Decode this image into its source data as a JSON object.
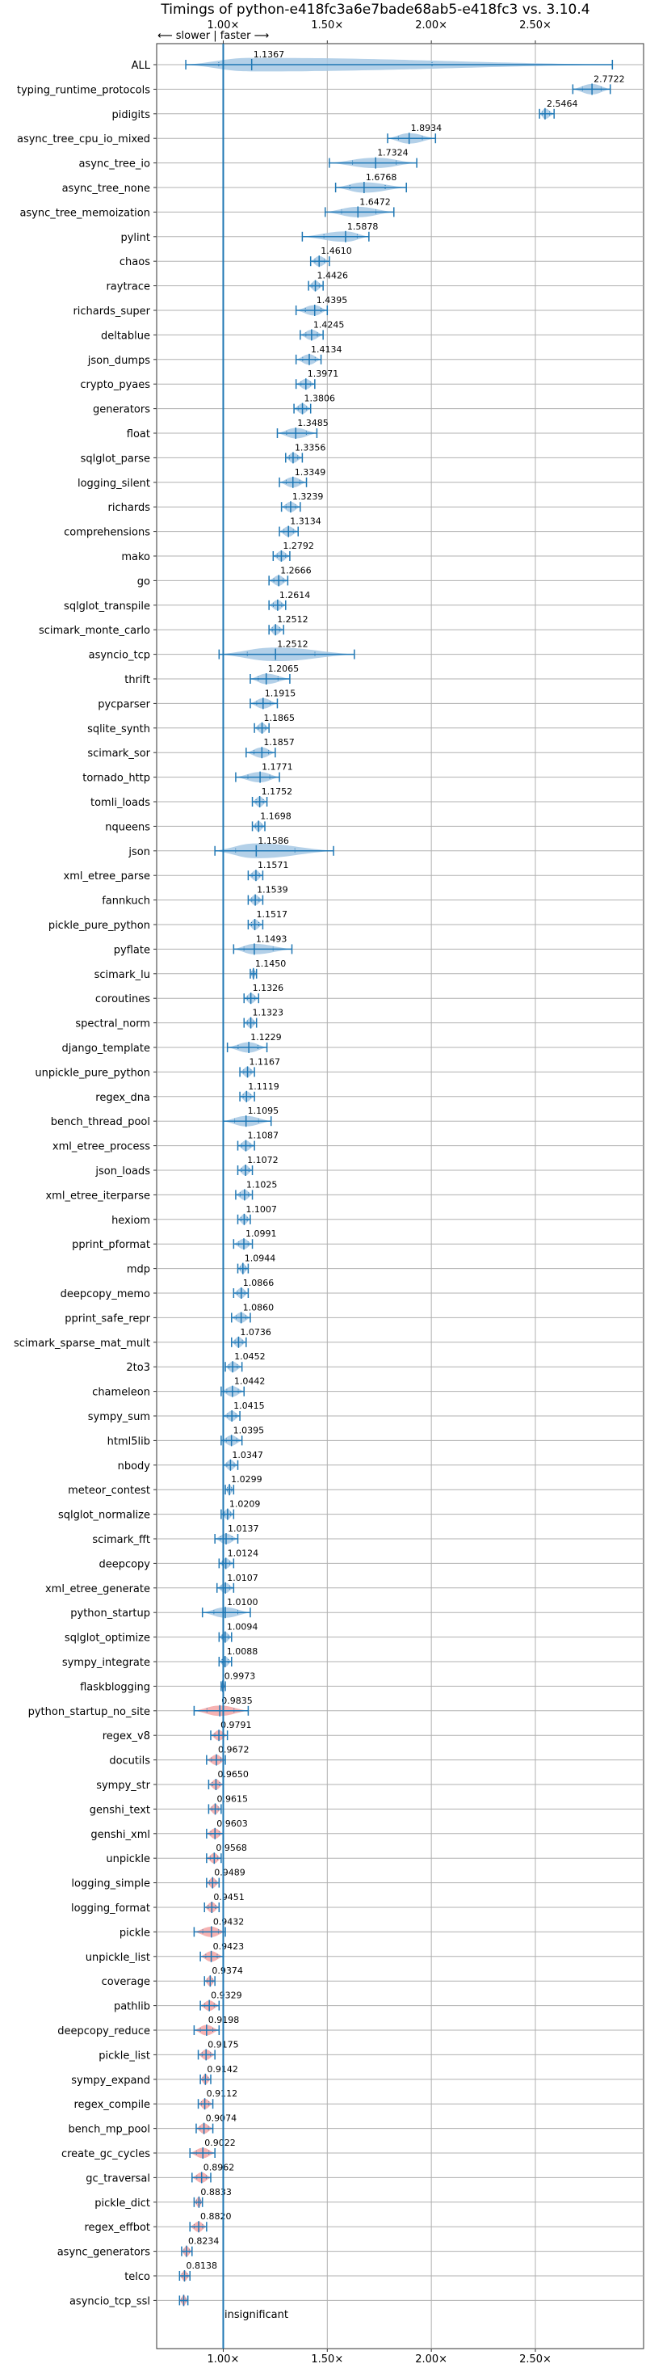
{
  "chart_data": {
    "type": "violin",
    "title": "Timings of python-e418fc3a6e7bade68ab5-e418fc3 vs. 3.10.4",
    "direction_label": "⟵ slower | faster ⟶",
    "footnote": "insignificant",
    "xlim": [
      0.68,
      3.02
    ],
    "x_ticks": [
      {
        "value": 1.0,
        "label": "1.00×"
      },
      {
        "value": 1.5,
        "label": "1.50×"
      },
      {
        "value": 2.0,
        "label": "2.00×"
      },
      {
        "value": 2.5,
        "label": "2.50×"
      }
    ],
    "grid": true,
    "colors": {
      "faster": "#a6c8e4",
      "slower": "#f4a5a5",
      "line": "#1f77b4",
      "axis": "#333333"
    },
    "benchmarks": [
      {
        "name": "ALL",
        "value": 1.1367,
        "min": 0.82,
        "max": 2.87,
        "width": 0.55
      },
      {
        "name": "typing_runtime_protocols",
        "value": 2.7722,
        "min": 2.68,
        "max": 2.86
      },
      {
        "name": "pidigits",
        "value": 2.5464,
        "min": 2.52,
        "max": 2.59
      },
      {
        "name": "async_tree_cpu_io_mixed",
        "value": 1.8934,
        "min": 1.79,
        "max": 2.02
      },
      {
        "name": "async_tree_io",
        "value": 1.7324,
        "min": 1.51,
        "max": 1.93
      },
      {
        "name": "async_tree_none",
        "value": 1.6768,
        "min": 1.54,
        "max": 1.88
      },
      {
        "name": "async_tree_memoization",
        "value": 1.6472,
        "min": 1.49,
        "max": 1.82
      },
      {
        "name": "pylint",
        "value": 1.5878,
        "min": 1.38,
        "max": 1.7
      },
      {
        "name": "chaos",
        "value": 1.461,
        "min": 1.42,
        "max": 1.51
      },
      {
        "name": "raytrace",
        "value": 1.4426,
        "min": 1.41,
        "max": 1.48
      },
      {
        "name": "richards_super",
        "value": 1.4395,
        "min": 1.35,
        "max": 1.5
      },
      {
        "name": "deltablue",
        "value": 1.4245,
        "min": 1.37,
        "max": 1.48
      },
      {
        "name": "json_dumps",
        "value": 1.4134,
        "min": 1.35,
        "max": 1.47
      },
      {
        "name": "crypto_pyaes",
        "value": 1.3971,
        "min": 1.35,
        "max": 1.44
      },
      {
        "name": "generators",
        "value": 1.3806,
        "min": 1.34,
        "max": 1.42
      },
      {
        "name": "float",
        "value": 1.3485,
        "min": 1.26,
        "max": 1.45
      },
      {
        "name": "sqlglot_parse",
        "value": 1.3356,
        "min": 1.3,
        "max": 1.38
      },
      {
        "name": "logging_silent",
        "value": 1.3349,
        "min": 1.27,
        "max": 1.4
      },
      {
        "name": "richards",
        "value": 1.3239,
        "min": 1.28,
        "max": 1.37
      },
      {
        "name": "comprehensions",
        "value": 1.3134,
        "min": 1.27,
        "max": 1.36
      },
      {
        "name": "mako",
        "value": 1.2792,
        "min": 1.24,
        "max": 1.32
      },
      {
        "name": "go",
        "value": 1.2666,
        "min": 1.22,
        "max": 1.31
      },
      {
        "name": "sqlglot_transpile",
        "value": 1.2614,
        "min": 1.22,
        "max": 1.3
      },
      {
        "name": "scimark_monte_carlo",
        "value": 1.2512,
        "min": 1.22,
        "max": 1.29
      },
      {
        "name": "asyncio_tcp",
        "value": 1.2512,
        "min": 0.98,
        "max": 1.63,
        "width": 0.55
      },
      {
        "name": "thrift",
        "value": 1.2065,
        "min": 1.13,
        "max": 1.32
      },
      {
        "name": "pycparser",
        "value": 1.1915,
        "min": 1.13,
        "max": 1.26
      },
      {
        "name": "sqlite_synth",
        "value": 1.1865,
        "min": 1.15,
        "max": 1.22
      },
      {
        "name": "scimark_sor",
        "value": 1.1857,
        "min": 1.11,
        "max": 1.25
      },
      {
        "name": "tornado_http",
        "value": 1.1771,
        "min": 1.06,
        "max": 1.27
      },
      {
        "name": "tomli_loads",
        "value": 1.1752,
        "min": 1.14,
        "max": 1.21
      },
      {
        "name": "nqueens",
        "value": 1.1698,
        "min": 1.14,
        "max": 1.2
      },
      {
        "name": "json",
        "value": 1.1586,
        "min": 0.96,
        "max": 1.53,
        "width": 0.6
      },
      {
        "name": "xml_etree_parse",
        "value": 1.1571,
        "min": 1.12,
        "max": 1.19
      },
      {
        "name": "fannkuch",
        "value": 1.1539,
        "min": 1.12,
        "max": 1.19
      },
      {
        "name": "pickle_pure_python",
        "value": 1.1517,
        "min": 1.12,
        "max": 1.19
      },
      {
        "name": "pyflate",
        "value": 1.1493,
        "min": 1.05,
        "max": 1.33
      },
      {
        "name": "scimark_lu",
        "value": 1.145,
        "min": 1.13,
        "max": 1.16
      },
      {
        "name": "coroutines",
        "value": 1.1326,
        "min": 1.1,
        "max": 1.17
      },
      {
        "name": "spectral_norm",
        "value": 1.1323,
        "min": 1.1,
        "max": 1.16
      },
      {
        "name": "django_template",
        "value": 1.1229,
        "min": 1.02,
        "max": 1.21
      },
      {
        "name": "unpickle_pure_python",
        "value": 1.1167,
        "min": 1.08,
        "max": 1.15
      },
      {
        "name": "regex_dna",
        "value": 1.1119,
        "min": 1.08,
        "max": 1.15
      },
      {
        "name": "bench_thread_pool",
        "value": 1.1095,
        "min": 1.0,
        "max": 1.23
      },
      {
        "name": "xml_etree_process",
        "value": 1.1087,
        "min": 1.07,
        "max": 1.15
      },
      {
        "name": "json_loads",
        "value": 1.1072,
        "min": 1.07,
        "max": 1.14
      },
      {
        "name": "xml_etree_iterparse",
        "value": 1.1025,
        "min": 1.06,
        "max": 1.14
      },
      {
        "name": "hexiom",
        "value": 1.1007,
        "min": 1.07,
        "max": 1.13
      },
      {
        "name": "pprint_pformat",
        "value": 1.0991,
        "min": 1.05,
        "max": 1.14
      },
      {
        "name": "mdp",
        "value": 1.0944,
        "min": 1.07,
        "max": 1.12
      },
      {
        "name": "deepcopy_memo",
        "value": 1.0866,
        "min": 1.05,
        "max": 1.12
      },
      {
        "name": "pprint_safe_repr",
        "value": 1.086,
        "min": 1.04,
        "max": 1.13
      },
      {
        "name": "scimark_sparse_mat_mult",
        "value": 1.0736,
        "min": 1.04,
        "max": 1.11
      },
      {
        "name": "2to3",
        "value": 1.0452,
        "min": 1.01,
        "max": 1.09
      },
      {
        "name": "chameleon",
        "value": 1.0442,
        "min": 0.99,
        "max": 1.1
      },
      {
        "name": "sympy_sum",
        "value": 1.0415,
        "min": 1.0,
        "max": 1.08
      },
      {
        "name": "html5lib",
        "value": 1.0395,
        "min": 0.99,
        "max": 1.09
      },
      {
        "name": "nbody",
        "value": 1.0347,
        "min": 1.0,
        "max": 1.07
      },
      {
        "name": "meteor_contest",
        "value": 1.0299,
        "min": 1.01,
        "max": 1.05
      },
      {
        "name": "sqlglot_normalize",
        "value": 1.0209,
        "min": 0.99,
        "max": 1.05
      },
      {
        "name": "scimark_fft",
        "value": 1.0137,
        "min": 0.96,
        "max": 1.07
      },
      {
        "name": "deepcopy",
        "value": 1.0124,
        "min": 0.98,
        "max": 1.05
      },
      {
        "name": "xml_etree_generate",
        "value": 1.0107,
        "min": 0.97,
        "max": 1.05
      },
      {
        "name": "python_startup",
        "value": 1.01,
        "min": 0.9,
        "max": 1.13
      },
      {
        "name": "sqlglot_optimize",
        "value": 1.0094,
        "min": 0.98,
        "max": 1.04
      },
      {
        "name": "sympy_integrate",
        "value": 1.0088,
        "min": 0.98,
        "max": 1.04
      },
      {
        "name": "flaskblogging",
        "value": 0.9973,
        "min": 0.99,
        "max": 1.01
      },
      {
        "name": "python_startup_no_site",
        "value": 0.9835,
        "min": 0.86,
        "max": 1.12
      },
      {
        "name": "regex_v8",
        "value": 0.9791,
        "min": 0.94,
        "max": 1.02
      },
      {
        "name": "docutils",
        "value": 0.9672,
        "min": 0.92,
        "max": 1.01
      },
      {
        "name": "sympy_str",
        "value": 0.965,
        "min": 0.93,
        "max": 1.0
      },
      {
        "name": "genshi_text",
        "value": 0.9615,
        "min": 0.93,
        "max": 0.99
      },
      {
        "name": "genshi_xml",
        "value": 0.9603,
        "min": 0.92,
        "max": 1.0
      },
      {
        "name": "unpickle",
        "value": 0.9568,
        "min": 0.92,
        "max": 0.99
      },
      {
        "name": "logging_simple",
        "value": 0.9489,
        "min": 0.92,
        "max": 0.98
      },
      {
        "name": "logging_format",
        "value": 0.9451,
        "min": 0.91,
        "max": 0.98
      },
      {
        "name": "pickle",
        "value": 0.9432,
        "min": 0.86,
        "max": 1.01
      },
      {
        "name": "unpickle_list",
        "value": 0.9423,
        "min": 0.89,
        "max": 1.0
      },
      {
        "name": "coverage",
        "value": 0.9374,
        "min": 0.91,
        "max": 0.96
      },
      {
        "name": "pathlib",
        "value": 0.9329,
        "min": 0.89,
        "max": 0.98
      },
      {
        "name": "deepcopy_reduce",
        "value": 0.9198,
        "min": 0.86,
        "max": 0.98
      },
      {
        "name": "pickle_list",
        "value": 0.9175,
        "min": 0.88,
        "max": 0.96
      },
      {
        "name": "sympy_expand",
        "value": 0.9142,
        "min": 0.89,
        "max": 0.94
      },
      {
        "name": "regex_compile",
        "value": 0.9112,
        "min": 0.88,
        "max": 0.95
      },
      {
        "name": "bench_mp_pool",
        "value": 0.9074,
        "min": 0.87,
        "max": 0.95
      },
      {
        "name": "create_gc_cycles",
        "value": 0.9022,
        "min": 0.84,
        "max": 0.96
      },
      {
        "name": "gc_traversal",
        "value": 0.8962,
        "min": 0.85,
        "max": 0.94
      },
      {
        "name": "pickle_dict",
        "value": 0.8833,
        "min": 0.86,
        "max": 0.9
      },
      {
        "name": "regex_effbot",
        "value": 0.882,
        "min": 0.84,
        "max": 0.92
      },
      {
        "name": "async_generators",
        "value": 0.8234,
        "min": 0.8,
        "max": 0.85
      },
      {
        "name": "telco",
        "value": 0.8138,
        "min": 0.79,
        "max": 0.84
      },
      {
        "name": "asyncio_tcp_ssl",
        "value": 0.81,
        "min": 0.79,
        "max": 0.83,
        "no_label": true
      }
    ]
  }
}
